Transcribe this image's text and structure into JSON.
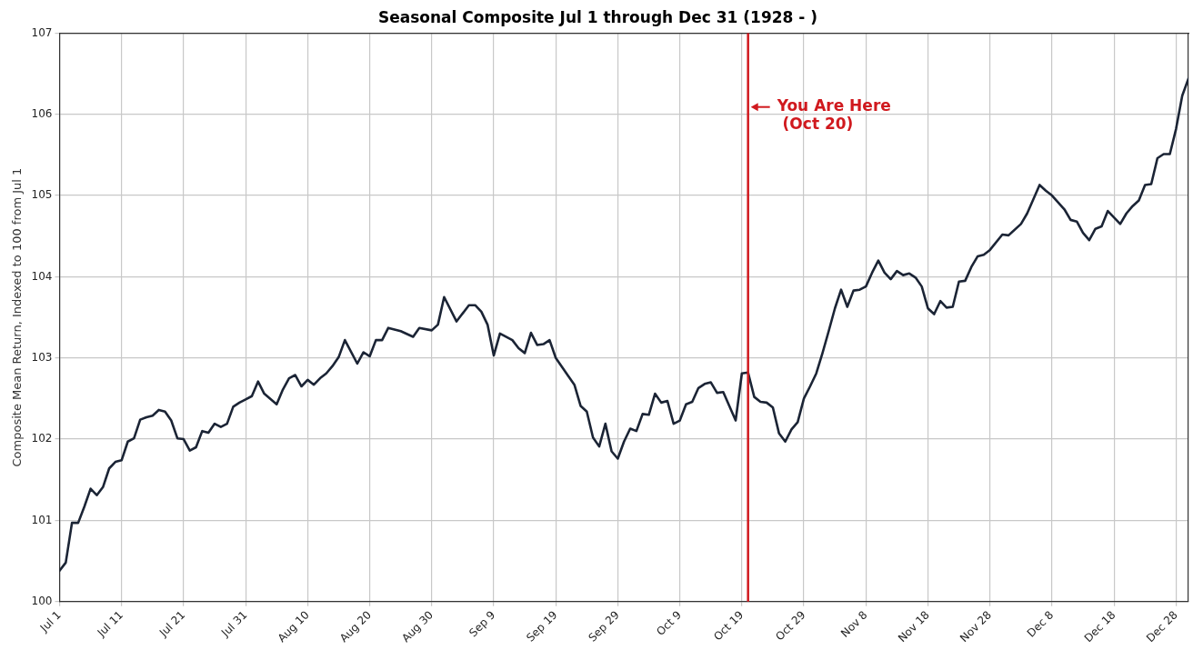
{
  "chart_data": {
    "type": "line",
    "title": "Seasonal Composite Jul 1 through Dec 31 (1928 - )",
    "ylabel": "Composite Mean Return, Indexed to 100 from Jul 1",
    "x": [
      "--07-01",
      "--07-02",
      "--07-03",
      "--07-04",
      "--07-05",
      "--07-06",
      "--07-07",
      "--07-08",
      "--07-09",
      "--07-10",
      "--07-11",
      "--07-12",
      "--07-13",
      "--07-14",
      "--07-15",
      "--07-16",
      "--07-17",
      "--07-18",
      "--07-19",
      "--07-20",
      "--07-21",
      "--07-22",
      "--07-23",
      "--07-24",
      "--07-25",
      "--07-26",
      "--07-27",
      "--07-28",
      "--07-29",
      "--07-30",
      "--07-31",
      "--08-01",
      "--08-02",
      "--08-03",
      "--08-05",
      "--08-06",
      "--08-07",
      "--08-08",
      "--08-09",
      "--08-10",
      "--08-11",
      "--08-12",
      "--08-13",
      "--08-14",
      "--08-15",
      "--08-16",
      "--08-18",
      "--08-19",
      "--08-20",
      "--08-21",
      "--08-22",
      "--08-23",
      "--08-25",
      "--08-27",
      "--08-28",
      "--08-30",
      "--08-31",
      "--09-01",
      "--09-03",
      "--09-05",
      "--09-06",
      "--09-07",
      "--09-08",
      "--09-09",
      "--09-10",
      "--09-12",
      "--09-13",
      "--09-14",
      "--09-15",
      "--09-16",
      "--09-17",
      "--09-18",
      "--09-19",
      "--09-21",
      "--09-22",
      "--09-23",
      "--09-24",
      "--09-25",
      "--09-26",
      "--09-27",
      "--09-28",
      "--09-29",
      "--09-30",
      "--10-01",
      "--10-02",
      "--10-03",
      "--10-04",
      "--10-05",
      "--10-06",
      "--10-07",
      "--10-08",
      "--10-09",
      "--10-10",
      "--10-11",
      "--10-12",
      "--10-13",
      "--10-14",
      "--10-15",
      "--10-16",
      "--10-18",
      "--10-19",
      "--10-20",
      "--10-21",
      "--10-22",
      "--10-23",
      "--10-24",
      "--10-25",
      "--10-26",
      "--10-27",
      "--10-28",
      "--10-29",
      "--10-30",
      "--10-31",
      "--11-01",
      "--11-02",
      "--11-03",
      "--11-04",
      "--11-05",
      "--11-06",
      "--11-07",
      "--11-08",
      "--11-09",
      "--11-10",
      "--11-11",
      "--11-12",
      "--11-13",
      "--11-14",
      "--11-15",
      "--11-16",
      "--11-17",
      "--11-18",
      "--11-19",
      "--11-20",
      "--11-21",
      "--11-22",
      "--11-23",
      "--11-24",
      "--11-25",
      "--11-26",
      "--11-27",
      "--11-28",
      "--11-30",
      "--12-01",
      "--12-03",
      "--12-04",
      "--12-06",
      "--12-07",
      "--12-08",
      "--12-10",
      "--12-11",
      "--12-12",
      "--12-13",
      "--12-14",
      "--12-15",
      "--12-16",
      "--12-17",
      "--12-19",
      "--12-20",
      "--12-21",
      "--12-22",
      "--12-23",
      "--12-24",
      "--12-25",
      "--12-26",
      "--12-27",
      "--12-28",
      "--12-29",
      "--12-30"
    ],
    "series": [
      {
        "color": "#1b2435",
        "values": [
          100.38,
          100.48,
          100.97,
          100.97,
          101.17,
          101.39,
          101.31,
          101.41,
          101.64,
          101.72,
          101.74,
          101.97,
          102.01,
          102.24,
          102.27,
          102.29,
          102.36,
          102.34,
          102.23,
          102.01,
          102.0,
          101.86,
          101.9,
          102.1,
          102.08,
          102.19,
          102.15,
          102.19,
          102.4,
          102.45,
          102.49,
          102.53,
          102.71,
          102.56,
          102.43,
          102.61,
          102.75,
          102.79,
          102.65,
          102.73,
          102.67,
          102.75,
          102.81,
          102.9,
          103.01,
          103.22,
          102.93,
          103.07,
          103.02,
          103.22,
          103.22,
          103.37,
          103.33,
          103.26,
          103.37,
          103.34,
          103.41,
          103.75,
          103.45,
          103.65,
          103.65,
          103.57,
          103.41,
          103.03,
          103.3,
          103.22,
          103.12,
          103.06,
          103.31,
          103.16,
          103.17,
          103.22,
          103.0,
          102.78,
          102.67,
          102.41,
          102.34,
          102.02,
          101.91,
          102.19,
          101.85,
          101.76,
          101.97,
          102.13,
          102.1,
          102.31,
          102.3,
          102.56,
          102.45,
          102.47,
          102.19,
          102.23,
          102.43,
          102.46,
          102.63,
          102.68,
          102.7,
          102.57,
          102.58,
          102.23,
          102.81,
          102.82,
          102.52,
          102.46,
          102.45,
          102.39,
          102.07,
          101.97,
          102.12,
          102.21,
          102.5,
          102.65,
          102.81,
          103.06,
          103.33,
          103.61,
          103.84,
          103.63,
          103.83,
          103.84,
          103.88,
          104.05,
          104.2,
          104.05,
          103.97,
          104.07,
          104.02,
          104.04,
          103.99,
          103.88,
          103.61,
          103.54,
          103.7,
          103.62,
          103.63,
          103.94,
          103.95,
          104.12,
          104.25,
          104.27,
          104.33,
          104.52,
          104.51,
          104.65,
          104.78,
          105.13,
          105.06,
          105.0,
          104.83,
          104.7,
          104.68,
          104.54,
          104.45,
          104.59,
          104.62,
          104.81,
          104.65,
          104.78,
          104.87,
          104.94,
          105.13,
          105.14,
          105.46,
          105.51,
          105.51,
          105.82,
          106.23,
          106.44
        ]
      }
    ],
    "xlim": [
      "--07-01",
      "--12-30"
    ],
    "xticks": [
      {
        "value": "--07-01",
        "label": "Jul 1"
      },
      {
        "value": "--07-11",
        "label": "Jul 11"
      },
      {
        "value": "--07-21",
        "label": "Jul 21"
      },
      {
        "value": "--07-31",
        "label": "Jul 31"
      },
      {
        "value": "--08-10",
        "label": "Aug 10"
      },
      {
        "value": "--08-20",
        "label": "Aug 20"
      },
      {
        "value": "--08-30",
        "label": "Aug 30"
      },
      {
        "value": "--09-09",
        "label": "Sep 9"
      },
      {
        "value": "--09-19",
        "label": "Sep 19"
      },
      {
        "value": "--09-29",
        "label": "Sep 29"
      },
      {
        "value": "--10-09",
        "label": "Oct 9"
      },
      {
        "value": "--10-19",
        "label": "Oct 19"
      },
      {
        "value": "--10-29",
        "label": "Oct 29"
      },
      {
        "value": "--11-08",
        "label": "Nov 8"
      },
      {
        "value": "--11-18",
        "label": "Nov 18"
      },
      {
        "value": "--11-28",
        "label": "Nov 28"
      },
      {
        "value": "--12-08",
        "label": "Dec 8"
      },
      {
        "value": "--12-18",
        "label": "Dec 18"
      },
      {
        "value": "--12-28",
        "label": "Dec 28"
      }
    ],
    "ylim": [
      100,
      107
    ],
    "yticks": [
      100,
      101,
      102,
      103,
      104,
      105,
      106,
      107
    ],
    "ref_lines": [
      {
        "axis": "x",
        "value": "--10-20",
        "label": "You Are Here\n (Oct 20)",
        "color": "#d0191e"
      }
    ],
    "grid": true,
    "marker": "none",
    "line_style": "solid",
    "legend": false
  }
}
